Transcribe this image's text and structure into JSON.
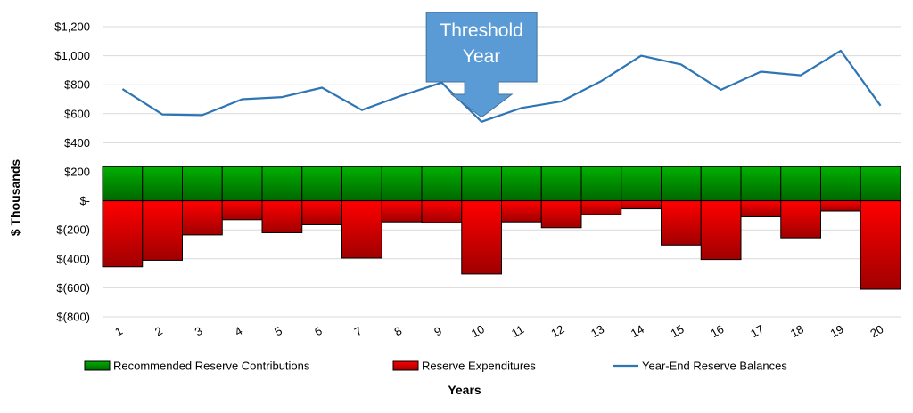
{
  "chart_data": {
    "type": "bar",
    "categories": [
      "1",
      "2",
      "3",
      "4",
      "5",
      "6",
      "7",
      "8",
      "9",
      "10",
      "11",
      "12",
      "13",
      "14",
      "15",
      "16",
      "17",
      "18",
      "19",
      "20"
    ],
    "series": [
      {
        "name": "Recommended Reserve Contributions",
        "type": "bar",
        "color": "#00a000",
        "values": [
          235,
          235,
          235,
          235,
          235,
          235,
          235,
          235,
          235,
          235,
          235,
          235,
          235,
          235,
          235,
          235,
          235,
          235,
          235,
          235
        ]
      },
      {
        "name": "Reserve Expenditures",
        "type": "bar",
        "color": "#e00000",
        "values": [
          -455,
          -410,
          -235,
          -130,
          -220,
          -165,
          -395,
          -145,
          -150,
          -505,
          -145,
          -185,
          -95,
          -55,
          -305,
          -405,
          -110,
          -255,
          -70,
          -610
        ]
      },
      {
        "name": "Year-End Reserve Balances",
        "type": "line",
        "color": "#2e75b6",
        "values": [
          770,
          595,
          590,
          700,
          715,
          780,
          625,
          725,
          815,
          545,
          640,
          685,
          825,
          1000,
          940,
          765,
          890,
          865,
          1035,
          655
        ]
      }
    ],
    "y_ticks": [
      "$1,200",
      "$1,000",
      "$800",
      "$600",
      "$400",
      "$200",
      "$-",
      "$(200)",
      "$(400)",
      "$(600)",
      "$(800)"
    ],
    "ylim": [
      -800,
      1200
    ],
    "ylabel": "$ Thousands",
    "xlabel": "Years",
    "grid": true,
    "legend_position": "bottom",
    "annotation": {
      "text_line1": "Threshold",
      "text_line2": "Year",
      "category": "10",
      "color": "#5b9bd5"
    }
  }
}
